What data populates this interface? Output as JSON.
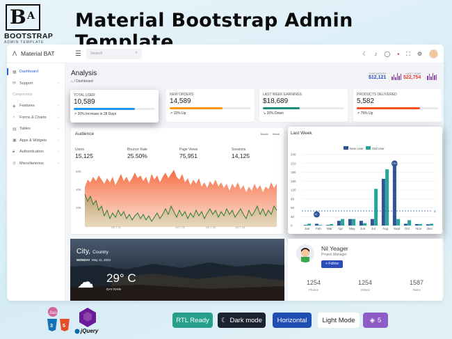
{
  "promo": {
    "logo_letters": "B",
    "logo_sub": "A",
    "logo_word": "BOOTSTRAP",
    "logo_tag": "ADMIN TEMPLATE",
    "title": "Material Bootstrap Admin Template"
  },
  "topbar": {
    "brand": "Material BAT",
    "search_placeholder": "Search"
  },
  "sidebar": {
    "items": [
      {
        "label": "Dashboard",
        "active": true
      },
      {
        "label": "Support"
      }
    ],
    "section": "Components",
    "component_items": [
      {
        "label": "Features"
      },
      {
        "label": "Forms & Charts"
      },
      {
        "label": "Tables"
      },
      {
        "label": "Apps & Widgets"
      },
      {
        "label": "Authentication"
      },
      {
        "label": "Miscellaneous"
      }
    ]
  },
  "page": {
    "title": "Analysis",
    "breadcrumb": "/ Dashboard",
    "this_month_label": "THIS MONTH",
    "this_month_value": "$12,121",
    "last_year_label": "LAST YEAR",
    "last_year_value": "$22,754"
  },
  "stats": [
    {
      "label": "TOTAL USER",
      "value": "10,589",
      "note": "20% Increase in 28 Days",
      "progress": 0.75,
      "color": "#2196f3"
    },
    {
      "label": "NEW ORDERS",
      "value": "14,589",
      "note": "15% Up",
      "progress": 0.65,
      "color": "#ff9800"
    },
    {
      "label": "LAST WEEK EARNINGS",
      "value": "$18,689",
      "note": "20% Down",
      "progress": 0.45,
      "color": "#1a8a7a"
    },
    {
      "label": "PRODUCTS DELIVERED",
      "value": "5,582",
      "note": "75% Up",
      "progress": 0.78,
      "color": "#f4511e"
    }
  ],
  "audience": {
    "title": "Audience",
    "tabs": [
      "Month",
      "Week"
    ],
    "stats": [
      {
        "label": "Users",
        "value": "15,125"
      },
      {
        "label": "Bounce Rate",
        "value": "25.50%"
      },
      {
        "label": "Page Views",
        "value": "75,951"
      },
      {
        "label": "Sessions",
        "value": "14,125"
      }
    ],
    "y_labels": [
      "60K",
      "40K",
      "20K"
    ],
    "x_labels": [
      "OCT 21",
      "OCT 22",
      "OCT 23",
      "OCT 24"
    ]
  },
  "last_week": {
    "title": "Last Week",
    "legend": [
      "New User",
      "Old User"
    ],
    "colors": {
      "new": "#2f5597",
      "old": "#26a69a"
    },
    "y_ticks": [
      "0",
      "30",
      "60",
      "90",
      "120",
      "150",
      "180",
      "210",
      "240"
    ],
    "months": [
      "Jan",
      "Feb",
      "Mar",
      "Apr",
      "May",
      "Jun",
      "Jul",
      "Aug",
      "Sept",
      "Oct",
      "Nov",
      "Dec"
    ],
    "markers": [
      "4.5",
      "176.5"
    ],
    "line_value": "4"
  },
  "weather": {
    "city": "City,",
    "country": "Country",
    "day": "MONDAY",
    "date": "May 11, 2023",
    "temp": "29° C",
    "desc": "DAY RAIN"
  },
  "profile": {
    "name": "Nil Yeager",
    "role": "Project Manager",
    "button": "+ Follow",
    "stats": [
      {
        "n": "1254",
        "t": "Photos"
      },
      {
        "n": "1254",
        "t": "Videos"
      },
      {
        "n": "1587",
        "t": "Tasks"
      }
    ]
  },
  "badges": {
    "rtl": "RTL Ready",
    "dark": "Dark mode",
    "horizontal": "Horizontal",
    "light": "Light Mode",
    "bs_version": "5",
    "jquery": "jQuery"
  }
}
